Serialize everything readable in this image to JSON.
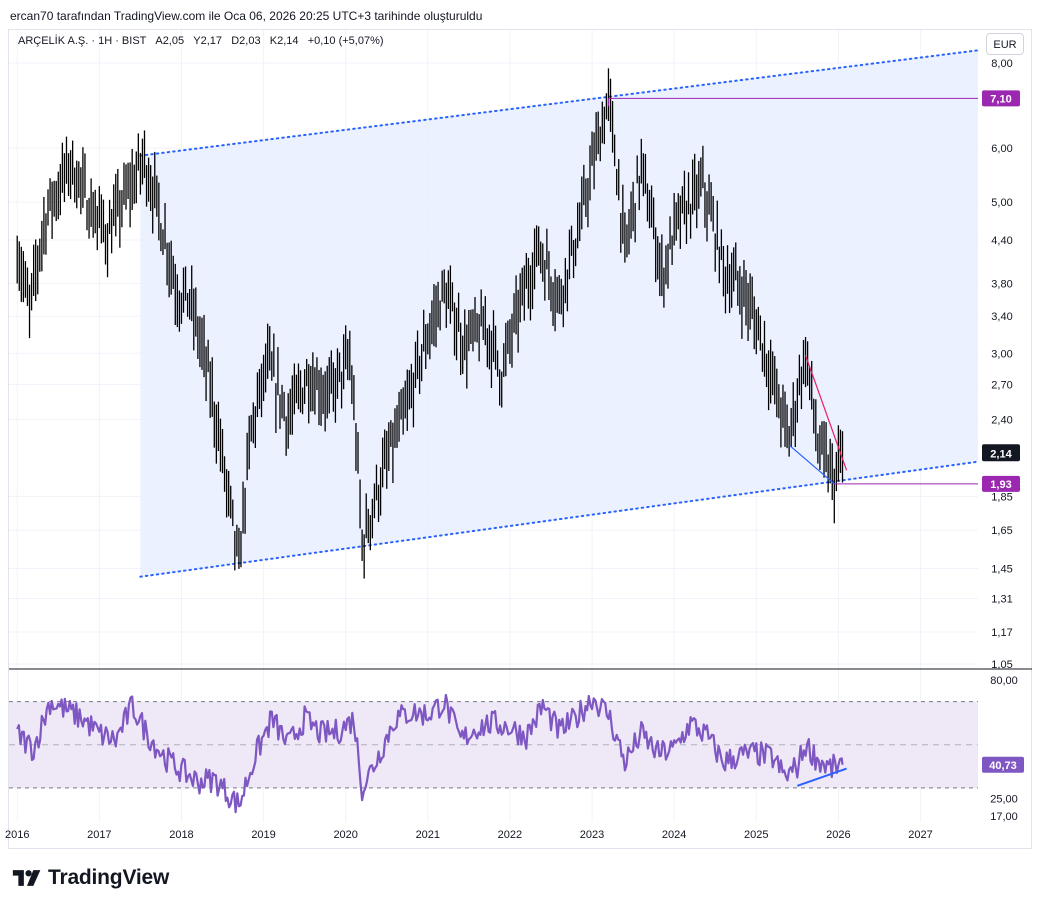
{
  "header": {
    "title": "ercan70 tarafından TradingView.com ile Oca 06, 2026 20:25 UTC+3 tarihinde oluşturuldu"
  },
  "legend": {
    "symbol": "ARÇELİK A.Ş. · 1H · BIST",
    "open_label": "A",
    "open": "2,05",
    "high_label": "Y",
    "high": "2,17",
    "low_label": "D",
    "low": "2,03",
    "close_label": "K",
    "close": "2,14",
    "change": "+0,10 (+5,07%)"
  },
  "currency_button": "EUR",
  "brand": {
    "name": "TradingView"
  },
  "colors": {
    "candle": "#000000",
    "channel_line": "#2962ff",
    "channel_fill": "#e8efff",
    "marker": "#9c27b0",
    "rsi": "#7e57c2",
    "rsi_band": "#ede7f6",
    "trend_red": "#e91e63"
  },
  "chart_data": [
    {
      "type": "candlestick",
      "title": "ARÇELİK A.Ş. · 1H · BIST",
      "scale": "log",
      "ylim": [
        1.05,
        8.0
      ],
      "xlim": [
        2015.9,
        2027.7
      ],
      "x_ticks": [
        "2016",
        "2017",
        "2018",
        "2019",
        "2020",
        "2021",
        "2022",
        "2023",
        "2024",
        "2025",
        "2026",
        "2027"
      ],
      "y_ticks": [
        "8,00",
        "6,00",
        "5,00",
        "4,40",
        "3,80",
        "3,40",
        "3,00",
        "2,70",
        "2,40",
        "1,85",
        "1,65",
        "1,45",
        "1,31",
        "1,17",
        "1,05"
      ],
      "price_path": [
        [
          2016.0,
          4.3
        ],
        [
          2016.15,
          3.45
        ],
        [
          2016.35,
          4.8
        ],
        [
          2016.65,
          5.7
        ],
        [
          2016.9,
          4.9
        ],
        [
          2017.1,
          4.5
        ],
        [
          2017.35,
          5.2
        ],
        [
          2017.55,
          5.8
        ],
        [
          2017.75,
          4.7
        ],
        [
          2017.95,
          3.7
        ],
        [
          2018.1,
          3.6
        ],
        [
          2018.35,
          2.7
        ],
        [
          2018.55,
          1.9
        ],
        [
          2018.7,
          1.45
        ],
        [
          2018.85,
          2.3
        ],
        [
          2019.05,
          2.9
        ],
        [
          2019.3,
          2.4
        ],
        [
          2019.55,
          2.8
        ],
        [
          2019.8,
          2.6
        ],
        [
          2020.05,
          2.95
        ],
        [
          2020.2,
          1.56
        ],
        [
          2020.45,
          2.0
        ],
        [
          2020.75,
          2.5
        ],
        [
          2021.0,
          3.2
        ],
        [
          2021.2,
          3.7
        ],
        [
          2021.45,
          3.1
        ],
        [
          2021.7,
          3.3
        ],
        [
          2021.9,
          2.8
        ],
        [
          2022.05,
          3.3
        ],
        [
          2022.35,
          4.3
        ],
        [
          2022.6,
          3.6
        ],
        [
          2022.85,
          4.6
        ],
        [
          2023.05,
          6.0
        ],
        [
          2023.2,
          7.05
        ],
        [
          2023.4,
          4.2
        ],
        [
          2023.6,
          5.6
        ],
        [
          2023.85,
          3.9
        ],
        [
          2024.05,
          4.7
        ],
        [
          2024.35,
          5.3
        ],
        [
          2024.6,
          4.0
        ],
        [
          2024.85,
          3.7
        ],
        [
          2025.05,
          3.2
        ],
        [
          2025.25,
          2.6
        ],
        [
          2025.4,
          2.25
        ],
        [
          2025.6,
          3.0
        ],
        [
          2025.75,
          2.2
        ],
        [
          2025.95,
          1.95
        ],
        [
          2026.05,
          2.14
        ]
      ],
      "channel": {
        "upper": [
          [
            2017.5,
            5.85
          ],
          [
            2027.7,
            8.35
          ]
        ],
        "lower": [
          [
            2017.5,
            1.41
          ],
          [
            2027.7,
            2.08
          ]
        ],
        "label": "rising price channel"
      },
      "marker_lines": [
        {
          "value": 7.1,
          "label": "7,10",
          "from_x": 2023.2
        },
        {
          "value": 1.93,
          "label": "1,93",
          "from_x": 2025.95
        }
      ],
      "last_price": {
        "value": 2.14,
        "label": "2,14"
      },
      "trendlines": [
        {
          "from": [
            2025.6,
            2.98
          ],
          "to": [
            2026.1,
            2.02
          ],
          "color": "red"
        },
        {
          "from": [
            2025.4,
            2.2
          ],
          "to": [
            2025.95,
            1.93
          ],
          "color": "blue"
        }
      ]
    },
    {
      "type": "line",
      "title": "RSI",
      "ylim": [
        17,
        80
      ],
      "y_ticks": [
        "80,00",
        "25,00",
        "17,00"
      ],
      "bands": {
        "upper": 70,
        "middle": 50,
        "lower": 30
      },
      "last_value": {
        "value": 40.73,
        "label": "40,73"
      },
      "values_path": [
        [
          2016.0,
          55
        ],
        [
          2016.2,
          48
        ],
        [
          2016.4,
          70
        ],
        [
          2016.6,
          66
        ],
        [
          2016.8,
          62
        ],
        [
          2017.0,
          55
        ],
        [
          2017.2,
          52
        ],
        [
          2017.4,
          68
        ],
        [
          2017.6,
          54
        ],
        [
          2017.8,
          44
        ],
        [
          2018.0,
          38
        ],
        [
          2018.2,
          33
        ],
        [
          2018.4,
          34
        ],
        [
          2018.55,
          28
        ],
        [
          2018.7,
          22
        ],
        [
          2018.9,
          45
        ],
        [
          2019.1,
          62
        ],
        [
          2019.3,
          50
        ],
        [
          2019.5,
          62
        ],
        [
          2019.7,
          55
        ],
        [
          2019.9,
          56
        ],
        [
          2020.1,
          62
        ],
        [
          2020.2,
          30
        ],
        [
          2020.4,
          45
        ],
        [
          2020.6,
          62
        ],
        [
          2020.8,
          65
        ],
        [
          2021.0,
          64
        ],
        [
          2021.2,
          70
        ],
        [
          2021.4,
          52
        ],
        [
          2021.6,
          58
        ],
        [
          2021.8,
          60
        ],
        [
          2022.0,
          58
        ],
        [
          2022.2,
          54
        ],
        [
          2022.4,
          68
        ],
        [
          2022.6,
          56
        ],
        [
          2022.8,
          62
        ],
        [
          2023.0,
          72
        ],
        [
          2023.2,
          64
        ],
        [
          2023.4,
          42
        ],
        [
          2023.6,
          55
        ],
        [
          2023.8,
          46
        ],
        [
          2024.0,
          48
        ],
        [
          2024.2,
          60
        ],
        [
          2024.4,
          54
        ],
        [
          2024.6,
          42
        ],
        [
          2024.8,
          45
        ],
        [
          2025.0,
          46
        ],
        [
          2025.2,
          44
        ],
        [
          2025.35,
          35
        ],
        [
          2025.5,
          40
        ],
        [
          2025.6,
          50
        ],
        [
          2025.75,
          43
        ],
        [
          2025.9,
          39
        ],
        [
          2026.05,
          40.73
        ]
      ],
      "trendline": {
        "from": [
          2025.5,
          31
        ],
        "to": [
          2026.1,
          39
        ],
        "color": "blue"
      }
    }
  ]
}
